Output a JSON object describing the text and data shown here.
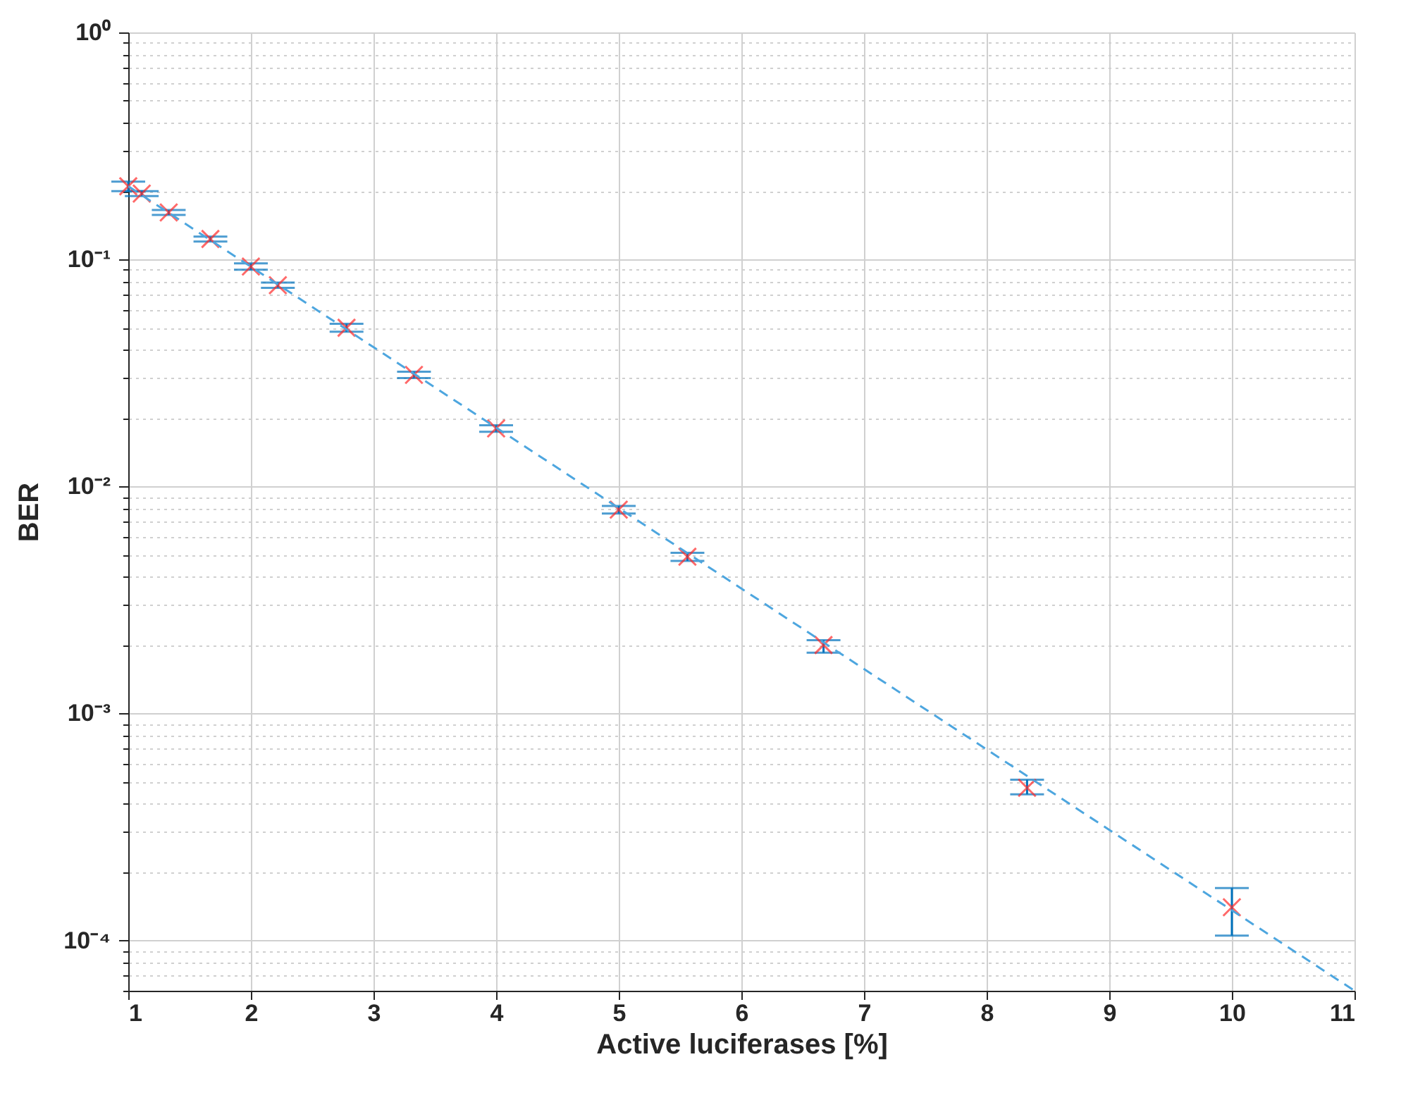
{
  "chart_data": {
    "type": "scatter",
    "xlabel": "Active luciferases [%]",
    "ylabel": "BER",
    "log": "y",
    "grid": true,
    "xlim": [
      1,
      11
    ],
    "xticks": [
      1,
      2,
      3,
      4,
      5,
      6,
      7,
      8,
      9,
      10,
      11
    ],
    "ylim": [
      6e-05,
      1
    ],
    "yticks": [
      {
        "value": 6e-05,
        "label": null
      },
      {
        "value": 7e-05,
        "label": null
      },
      {
        "value": 8e-05,
        "label": null
      },
      {
        "value": 9e-05,
        "label": null
      },
      {
        "value": 0.0001,
        "label": "10⁻⁴"
      },
      {
        "value": 0.0002,
        "label": null
      },
      {
        "value": 0.0003,
        "label": null
      },
      {
        "value": 0.0004,
        "label": null
      },
      {
        "value": 0.0005,
        "label": null
      },
      {
        "value": 0.0006,
        "label": null
      },
      {
        "value": 0.0007,
        "label": null
      },
      {
        "value": 0.0008,
        "label": null
      },
      {
        "value": 0.0009,
        "label": null
      },
      {
        "value": 0.001,
        "label": "10⁻³"
      },
      {
        "value": 0.002,
        "label": null
      },
      {
        "value": 0.003,
        "label": null
      },
      {
        "value": 0.004,
        "label": null
      },
      {
        "value": 0.005,
        "label": null
      },
      {
        "value": 0.006,
        "label": null
      },
      {
        "value": 0.007,
        "label": null
      },
      {
        "value": 0.008,
        "label": null
      },
      {
        "value": 0.009,
        "label": null
      },
      {
        "value": 0.01,
        "label": "10⁻²"
      },
      {
        "value": 0.02,
        "label": null
      },
      {
        "value": 0.03,
        "label": null
      },
      {
        "value": 0.04,
        "label": null
      },
      {
        "value": 0.05,
        "label": null
      },
      {
        "value": 0.06,
        "label": null
      },
      {
        "value": 0.07,
        "label": null
      },
      {
        "value": 0.08,
        "label": null
      },
      {
        "value": 0.09,
        "label": null
      },
      {
        "value": 0.1,
        "label": "10⁻¹"
      },
      {
        "value": 0.2,
        "label": null
      },
      {
        "value": 0.3,
        "label": null
      },
      {
        "value": 0.4,
        "label": null
      },
      {
        "value": 0.5,
        "label": null
      },
      {
        "value": 0.6,
        "label": null
      },
      {
        "value": 0.7,
        "label": null
      },
      {
        "value": 0.8,
        "label": null
      },
      {
        "value": 0.9,
        "label": null
      },
      {
        "value": 1,
        "label": "10⁰"
      }
    ],
    "series": [
      {
        "marker": "cross",
        "color": "#ff2a2a",
        "x": [
          1,
          1.11,
          1.33,
          1.67,
          2,
          2.22,
          2.78,
          3.33,
          4,
          5,
          5.56,
          6.67,
          8.33,
          10
        ],
        "values": [
          0.21,
          0.195,
          0.161,
          0.123,
          0.093,
          0.077,
          0.05,
          0.031,
          0.018,
          0.0079,
          0.0049,
          0.002,
          0.00047,
          0.00014
        ],
        "errors": [
          [
            0.2,
            0.22
          ],
          [
            0.19,
            0.2
          ],
          [
            0.157,
            0.165
          ],
          [
            0.12,
            0.126
          ],
          [
            0.09,
            0.096
          ],
          [
            0.075,
            0.079
          ],
          [
            0.048,
            0.052
          ],
          [
            0.03,
            0.032
          ],
          [
            0.0174,
            0.0186
          ],
          [
            0.0076,
            0.0082
          ],
          [
            0.0047,
            0.0051
          ],
          [
            0.00185,
            0.0021
          ],
          [
            0.00044,
            0.00051
          ],
          [
            0.000105,
            0.00017
          ]
        ]
      },
      {
        "type": "line",
        "color": "#4da6df",
        "line_style": "dashed",
        "x": [
          1,
          11
        ],
        "values": [
          0.21,
          6e-05
        ]
      }
    ]
  }
}
